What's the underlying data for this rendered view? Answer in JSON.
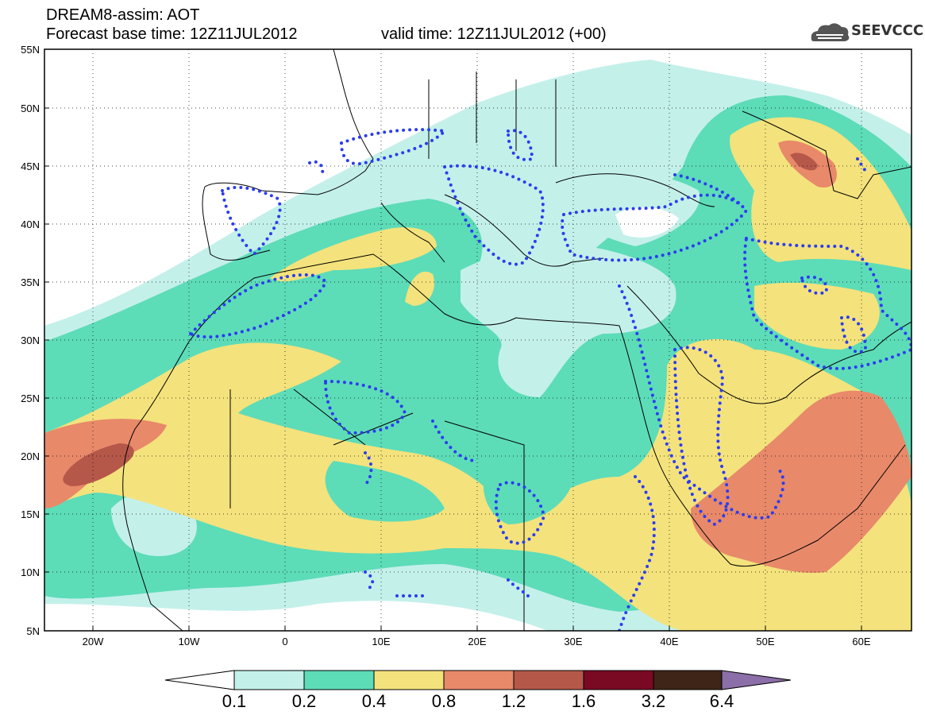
{
  "title": {
    "line1": "DREAM8-assim: AOT",
    "base_time": "Forecast base time: 12Z11JUL2012",
    "valid_time": "valid time: 12Z11JUL2012 (+00)"
  },
  "logo": {
    "text": "SEEVCCC",
    "icon": "cloud-icon"
  },
  "map": {
    "lat_labels": [
      "55N",
      "50N",
      "45N",
      "40N",
      "35N",
      "30N",
      "25N",
      "20N",
      "15N",
      "10N",
      "5N"
    ],
    "lon_labels": [
      "20W",
      "10W",
      "0",
      "10E",
      "20E",
      "30E",
      "40E",
      "50E",
      "60E"
    ],
    "lat_range": [
      5,
      55
    ],
    "lon_range": [
      -25,
      65
    ],
    "grid": "dotted"
  },
  "colorbar": {
    "ticks": [
      "0.1",
      "0.2",
      "0.4",
      "0.8",
      "1.2",
      "1.6",
      "3.2",
      "6.4"
    ],
    "colors": [
      "#ffffff",
      "#c4f0ea",
      "#5ddcb8",
      "#f4e27c",
      "#e8896a",
      "#b5584a",
      "#7a0a24",
      "#3e2517",
      "#8c6ea8"
    ]
  }
}
